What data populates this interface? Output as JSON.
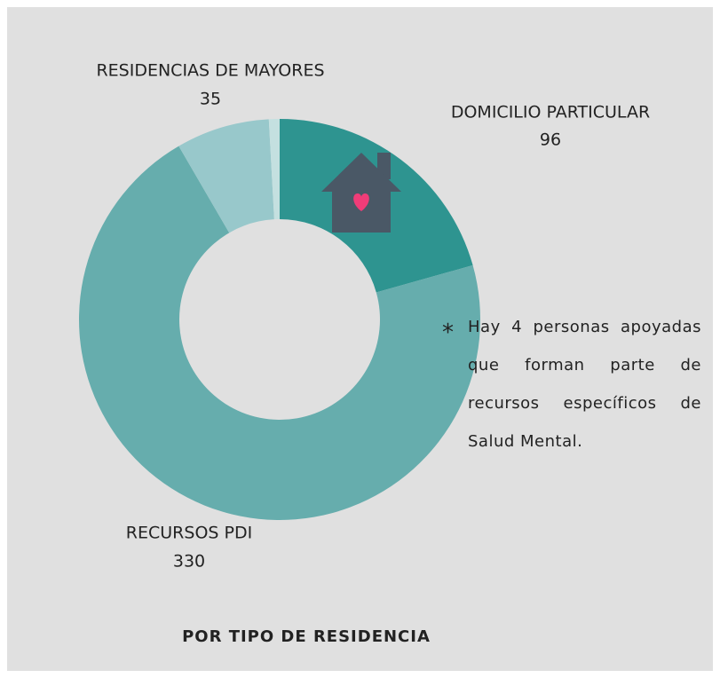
{
  "chart_data": {
    "type": "donut",
    "title": "POR TIPO DE RESIDENCIA",
    "categories": [
      "DOMICILIO PARTICULAR",
      "RECURSOS PDI",
      "RESIDENCIAS DE MAYORES",
      null
    ],
    "values": [
      96,
      330,
      35,
      4
    ],
    "colors": [
      "#2e9490",
      "#66adad",
      "#98c8cb",
      "#c4e0e0"
    ],
    "annotation_marker": "*",
    "annotation": "Hay 4 personas apoyadas que forman parte de recursos específicos de Salud Mental."
  }
}
